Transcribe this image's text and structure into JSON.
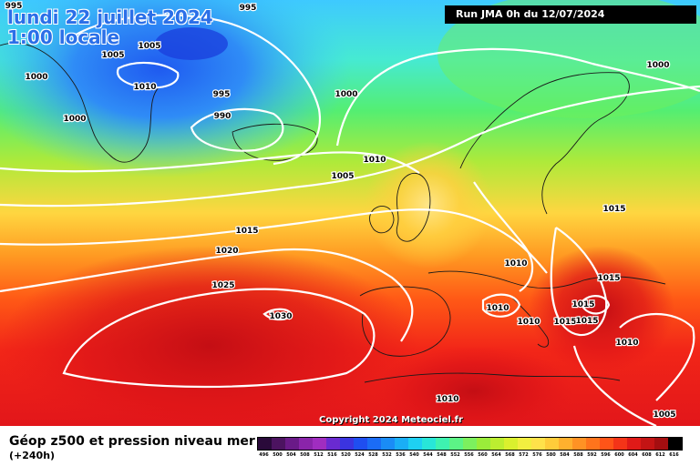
{
  "map_title": {
    "line1": "lundi 22 juillet 2024",
    "line2": "1:00 locale"
  },
  "run_banner": "Run JMA 0h du 12/07/2024",
  "copyright": "Copyright 2024 Meteociel.fr",
  "footer": {
    "title": "Géop z500 et pression niveau mer",
    "lead_time": "(+240h)"
  },
  "pressure_labels": [
    "995",
    "995",
    "1005",
    "1005",
    "1010",
    "1000",
    "995",
    "990",
    "1000",
    "1000",
    "1000",
    "1010",
    "1005",
    "1015",
    "1020",
    "1025",
    "1030",
    "1015",
    "1010",
    "1010",
    "1010",
    "1015",
    "1015",
    "1015",
    "1015",
    "1010",
    "1010",
    "1005"
  ],
  "colors": {
    "cold": "#1f5af0",
    "mild": "#ffe68a",
    "warm": "#ee1c1c",
    "isobar": "#ffffff",
    "coast": "#1a1a1a"
  },
  "colorbar": {
    "labels": [
      "496",
      "500",
      "504",
      "508",
      "512",
      "516",
      "520",
      "524",
      "528",
      "532",
      "536",
      "540",
      "544",
      "548",
      "552",
      "556",
      "560",
      "564",
      "568",
      "572",
      "576",
      "580",
      "584",
      "588",
      "592",
      "596",
      "600",
      "604",
      "608",
      "612",
      "616"
    ],
    "colors": [
      "#2a0a3a",
      "#4c1360",
      "#6a1a88",
      "#8a24aa",
      "#a02dc0",
      "#6a2ad0",
      "#3b34e0",
      "#1f4ef0",
      "#1b6cf5",
      "#1a8cf6",
      "#1aaef6",
      "#1ed0f2",
      "#28e6d8",
      "#3ef2b0",
      "#5cf486",
      "#7cf05e",
      "#9aec3a",
      "#bcee30",
      "#daf02e",
      "#f2ee40",
      "#ffe24a",
      "#ffcc3a",
      "#ffb02e",
      "#ff9224",
      "#ff741c",
      "#ff5418",
      "#f43418",
      "#e01a18",
      "#c41414",
      "#a40e10",
      "#000000"
    ]
  }
}
